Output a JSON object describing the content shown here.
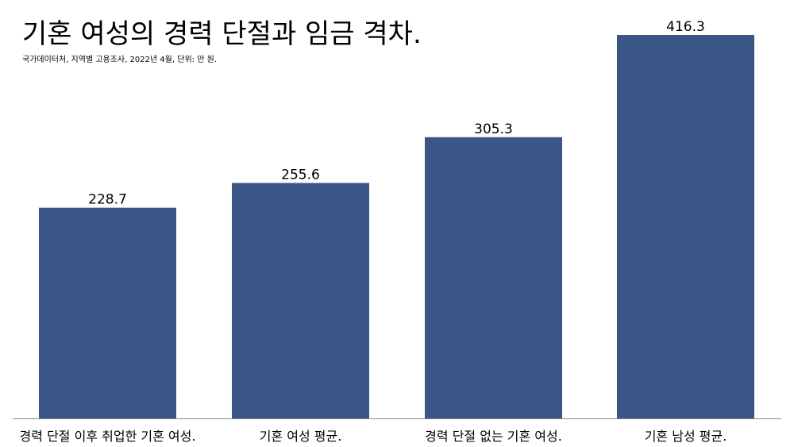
{
  "chart_data": {
    "type": "bar",
    "title": "기혼 여성의 경력 단절과 임금 격차.",
    "subtitle": "국가데이터처, 지역별 고용조사, 2022년 4월, 단위: 만 원.",
    "xlabel": "",
    "ylabel": "",
    "categories": [
      "경력 단절 이후 취업한 기혼 여성.",
      "기혼 여성 평균.",
      "경력 단절 없는 기혼 여성.",
      "기혼 남성 평균."
    ],
    "values": [
      228.7,
      255.6,
      305.3,
      416.3
    ],
    "value_labels": [
      "228.7",
      "255.6",
      "305.3",
      "416.3"
    ],
    "ylim": [
      0,
      416.3
    ],
    "grid": false,
    "legend": "none",
    "bar_color": "#3a5686",
    "axis_color": "#888888"
  }
}
